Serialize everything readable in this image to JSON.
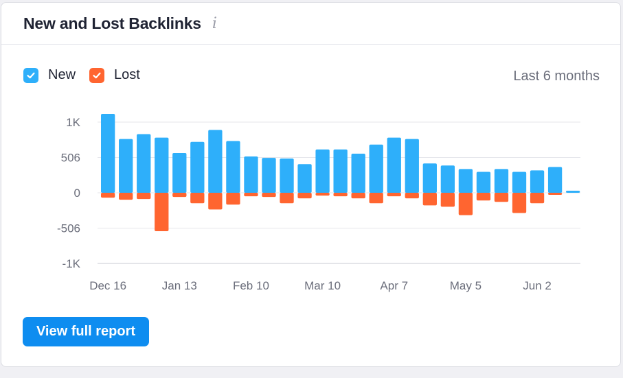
{
  "widget": {
    "title": "New and Lost Backlinks",
    "info_glyph": "i",
    "period_label": "Last 6 months",
    "report_button_label": "View full report"
  },
  "legend": [
    {
      "label": "New",
      "color": "#2eaffa",
      "checked": true
    },
    {
      "label": "Lost",
      "color": "#ff6530",
      "checked": true
    }
  ],
  "colors": {
    "new": "#2eaffa",
    "lost": "#ff6530",
    "button": "#0e8df0",
    "grid": "#e4e5ea",
    "axis": "#c9cbd3"
  },
  "chart_data": {
    "type": "bar",
    "stacked": true,
    "x_tick_labels": [
      "Dec 16",
      "Jan 13",
      "Feb 10",
      "Mar 10",
      "Apr 7",
      "May 5",
      "Jun 2"
    ],
    "y_tick_labels": [
      "1K",
      "506",
      "0",
      "-506",
      "-1K"
    ],
    "y_ticks": [
      1012,
      506,
      0,
      -506,
      -1012
    ],
    "ylim": [
      -1012,
      1012
    ],
    "grid": true,
    "legend_position": "top-left",
    "series": [
      {
        "name": "New",
        "values": [
          1130,
          770,
          840,
          790,
          570,
          730,
          900,
          740,
          520,
          500,
          490,
          410,
          620,
          620,
          560,
          690,
          790,
          770,
          420,
          390,
          340,
          300,
          340,
          300,
          320,
          370,
          30
        ]
      },
      {
        "name": "Lost",
        "values": [
          -70,
          -100,
          -90,
          -550,
          -60,
          -150,
          -240,
          -170,
          -50,
          -60,
          -150,
          -80,
          -40,
          -50,
          -80,
          -150,
          -50,
          -80,
          -180,
          -200,
          -320,
          -110,
          -130,
          -290,
          -150,
          -30,
          0
        ]
      }
    ]
  }
}
